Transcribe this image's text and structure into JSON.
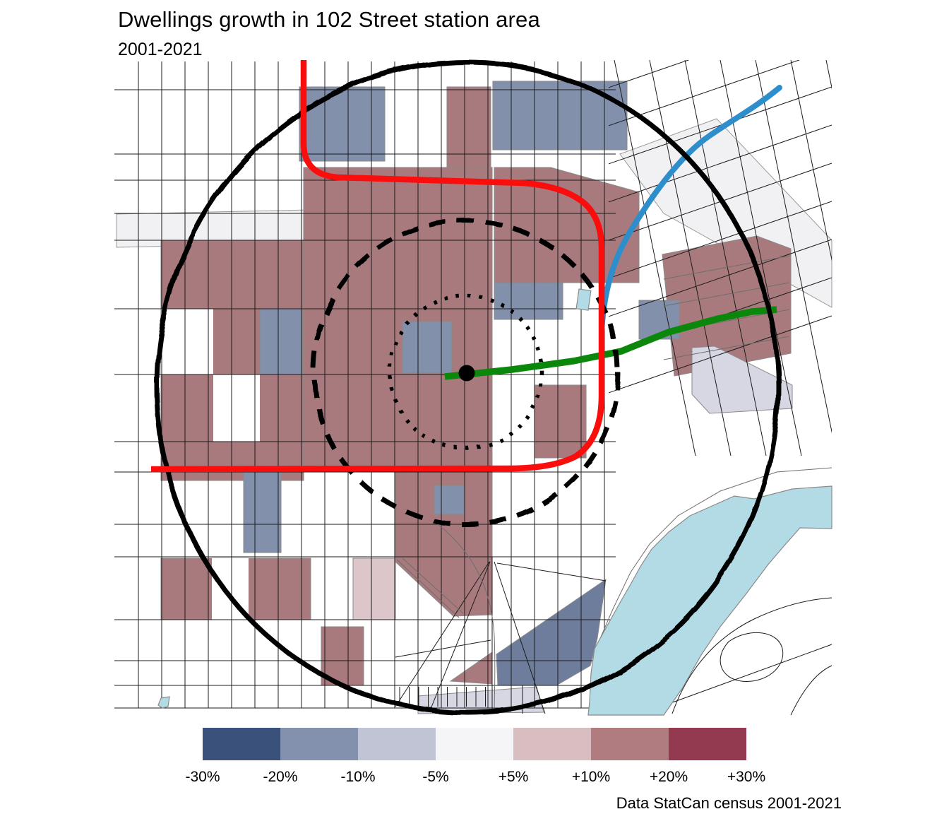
{
  "header": {
    "title": "Dwellings growth in 102 Street station area",
    "subtitle": "2001-2021",
    "caption": "Data StatCan census 2001-2021"
  },
  "legend": {
    "boundary_labels": [
      "-30%",
      "-20%",
      "-10%",
      "-5%",
      "+5%",
      "+10%",
      "+20%",
      "+30%"
    ],
    "swatch_colors": [
      "#3A517B",
      "#8391AE",
      "#C0C4D5",
      "#F5F4F6",
      "#D9BEC1",
      "#B17C80",
      "#943A50"
    ],
    "classes": [
      {
        "range": "-30% to -20%",
        "color": "#3A517B"
      },
      {
        "range": "-20% to -10%",
        "color": "#8391AE"
      },
      {
        "range": "-10% to -5%",
        "color": "#C0C4D5"
      },
      {
        "range": "-5% to +5%",
        "color": "#F5F4F6"
      },
      {
        "range": "+5% to +10%",
        "color": "#D9BEC1"
      },
      {
        "range": "+10% to +20%",
        "color": "#B17C80"
      },
      {
        "range": "+20% to +30%",
        "color": "#943A50"
      }
    ]
  },
  "palette": {
    "rose": "#A87A7E",
    "blue_gray": "#8290AB",
    "dark_blue": "#6F7D9C",
    "pale_pink": "#DCC6C9",
    "lavender": "#D6D7E3",
    "light_gray": "#F1F1F3",
    "water": "#B2DBE5",
    "pond": "#BFE4EF",
    "red_line": "#F90D0D",
    "green_line": "#0B870B",
    "blue_line": "#2E8ECC",
    "ring": "#000000",
    "station": "#000000"
  },
  "map": {
    "station": {
      "name": "102 Street station",
      "marker": "black-dot"
    },
    "buffer_rings": [
      {
        "name": "outer-ring",
        "style": "solid"
      },
      {
        "name": "middle-ring",
        "style": "dashed"
      },
      {
        "name": "inner-ring",
        "style": "dotted"
      }
    ],
    "lines": [
      {
        "name": "red-route",
        "color": "#F90D0D"
      },
      {
        "name": "green-route",
        "color": "#0B870B"
      },
      {
        "name": "blue-route",
        "color": "#2E8ECC"
      }
    ],
    "water_features": [
      "river",
      "pond"
    ]
  }
}
